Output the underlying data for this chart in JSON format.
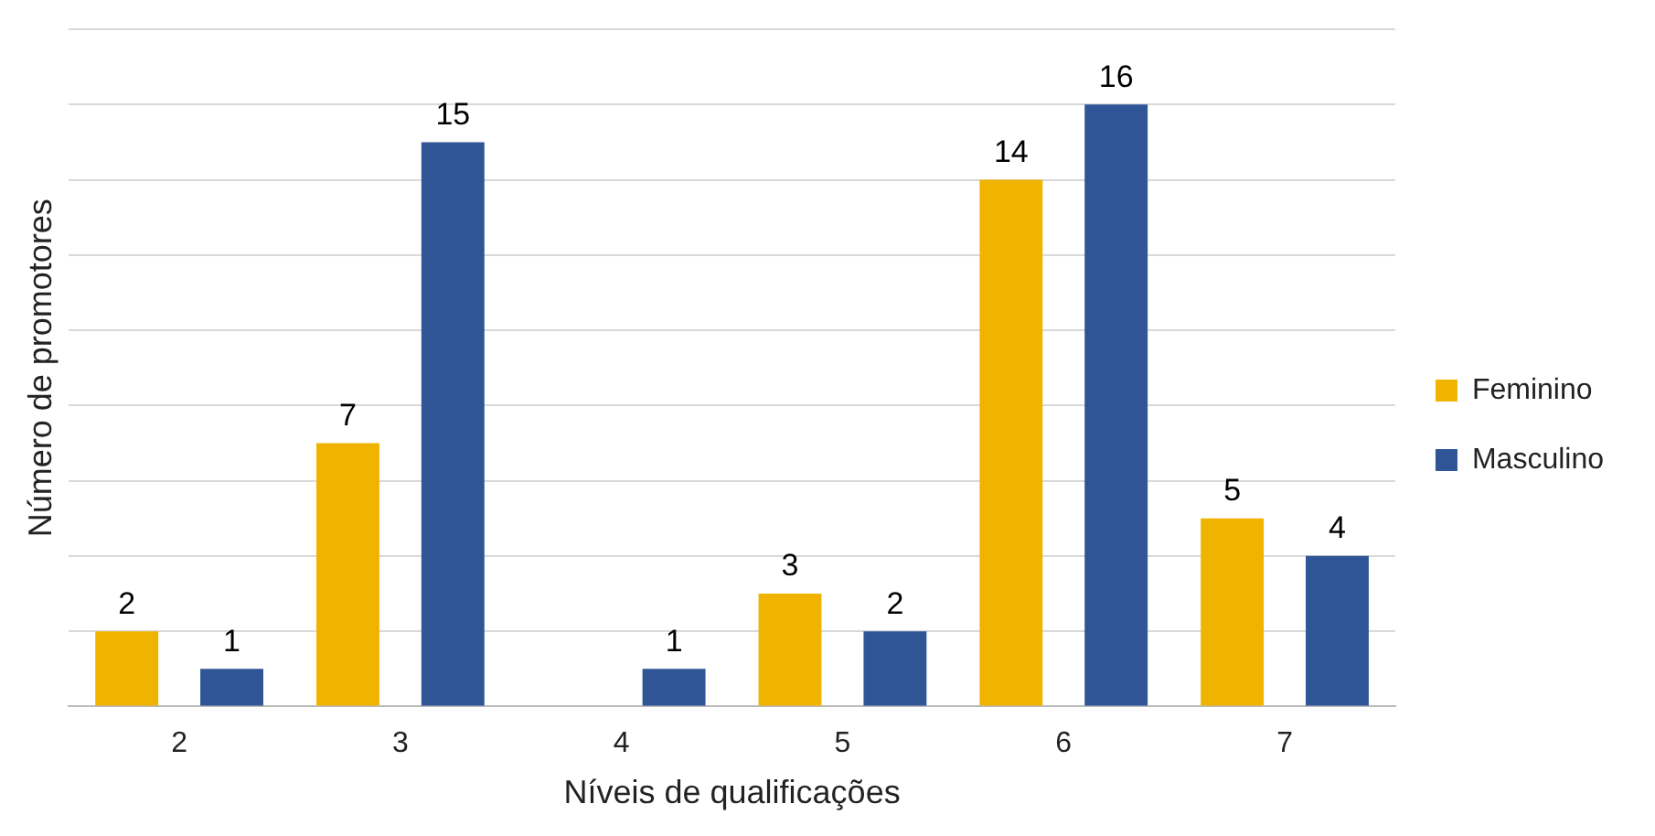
{
  "chart_data": {
    "type": "bar",
    "xlabel": "Níveis de qualificações",
    "ylabel": "Número de promotores",
    "categories": [
      "2",
      "3",
      "4",
      "5",
      "6",
      "7"
    ],
    "series": [
      {
        "name": "Feminino",
        "color": "#f0b400",
        "values": [
          2,
          7,
          null,
          3,
          14,
          5
        ]
      },
      {
        "name": "Masculino",
        "color": "#2f5597",
        "values": [
          1,
          15,
          1,
          2,
          16,
          4
        ]
      }
    ],
    "ylim": [
      0,
      18
    ],
    "yticks": [
      {
        "value": 0,
        "label": null
      },
      {
        "value": 2,
        "label": null
      },
      {
        "value": 4,
        "label": null
      },
      {
        "value": 6,
        "label": null
      },
      {
        "value": 8,
        "label": null
      },
      {
        "value": 10,
        "label": null
      },
      {
        "value": 12,
        "label": null
      },
      {
        "value": 14,
        "label": null
      },
      {
        "value": 16,
        "label": null
      },
      {
        "value": 18,
        "label": null
      }
    ],
    "tick_labels": "x",
    "grid": "y",
    "legend": "right",
    "data_labels": true
  }
}
